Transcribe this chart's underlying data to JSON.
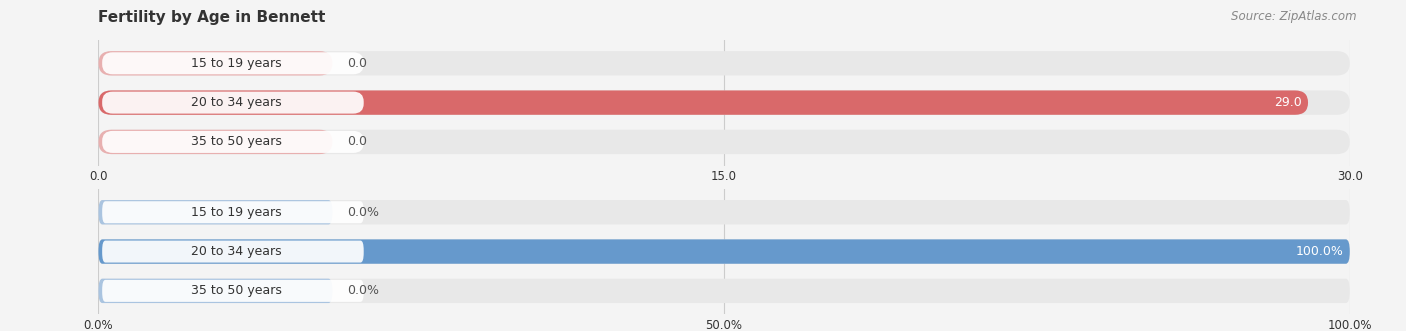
{
  "title": "Fertility by Age in Bennett",
  "source": "Source: ZipAtlas.com",
  "top_chart": {
    "categories": [
      "15 to 19 years",
      "20 to 34 years",
      "35 to 50 years"
    ],
    "values": [
      0.0,
      29.0,
      0.0
    ],
    "xlim": [
      0,
      30.0
    ],
    "xticks": [
      0.0,
      15.0,
      30.0
    ],
    "xtick_labels": [
      "0.0",
      "15.0",
      "30.0"
    ],
    "bar_color_full": "#d9696a",
    "bar_color_empty": "#e8b0b0",
    "bar_bg_color": "#e8e8e8",
    "label_bg_color": "#ffffff"
  },
  "bottom_chart": {
    "categories": [
      "15 to 19 years",
      "20 to 34 years",
      "35 to 50 years"
    ],
    "values": [
      0.0,
      100.0,
      0.0
    ],
    "xlim": [
      0,
      100.0
    ],
    "xticks": [
      0.0,
      50.0,
      100.0
    ],
    "xtick_labels": [
      "0.0%",
      "50.0%",
      "100.0%"
    ],
    "bar_color_full": "#6699cc",
    "bar_color_empty": "#aac4e0",
    "bar_bg_color": "#e8e8e8",
    "label_bg_color": "#ffffff"
  },
  "fig_bg_color": "#f4f4f4",
  "label_fontsize": 9,
  "value_fontsize": 9,
  "title_fontsize": 11,
  "source_fontsize": 8.5
}
